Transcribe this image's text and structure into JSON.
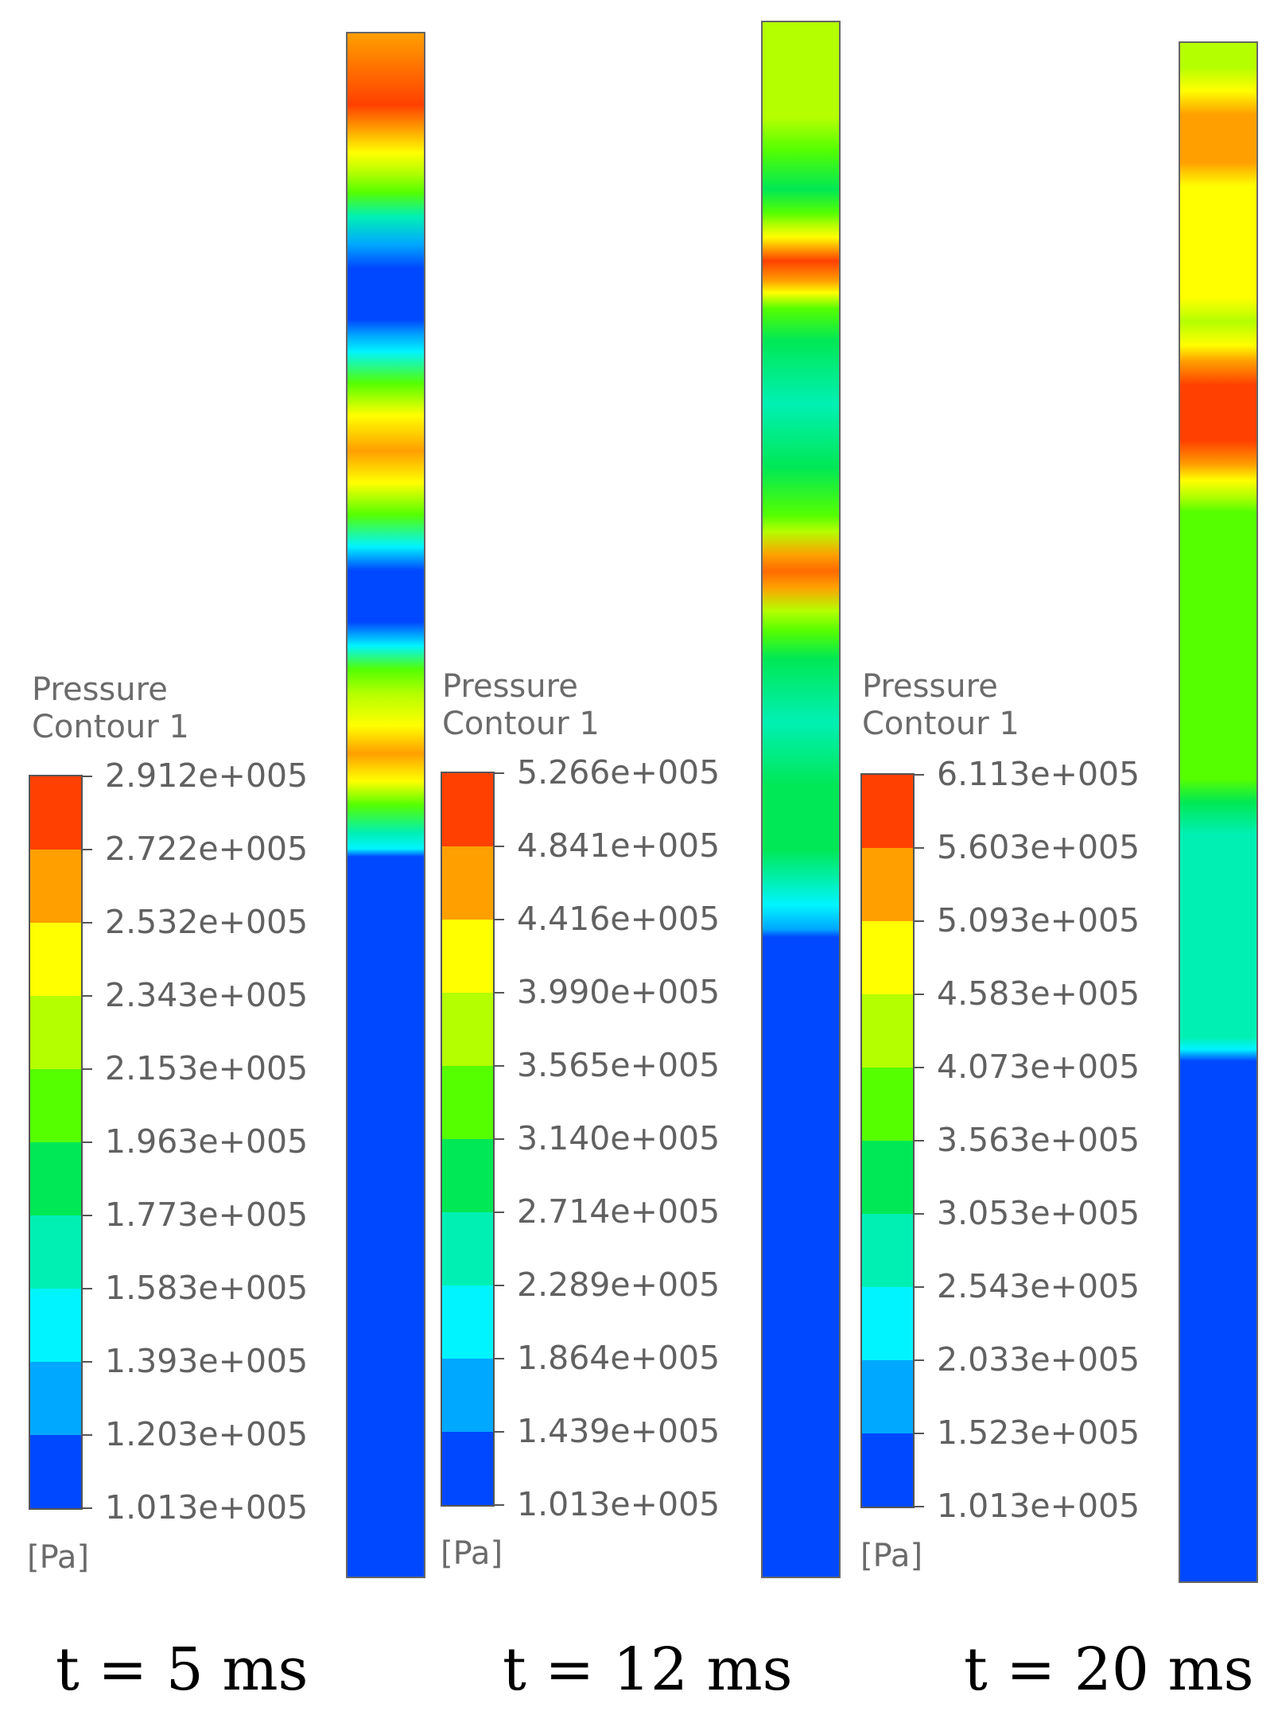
{
  "panels": [
    {
      "legend_title_line1": "Pressure",
      "legend_title_line2": "Contour 1",
      "ticks": [
        "2.912e+005",
        "2.722e+005",
        "2.532e+005",
        "2.343e+005",
        "2.153e+005",
        "1.963e+005",
        "1.773e+005",
        "1.583e+005",
        "1.393e+005",
        "1.203e+005",
        "1.013e+005"
      ],
      "unit": "[Pa]",
      "time": "t = 5 ms"
    },
    {
      "legend_title_line1": "Pressure",
      "legend_title_line2": "Contour 1",
      "ticks": [
        "5.266e+005",
        "4.841e+005",
        "4.416e+005",
        "3.990e+005",
        "3.565e+005",
        "3.140e+005",
        "2.714e+005",
        "2.289e+005",
        "1.864e+005",
        "1.439e+005",
        "1.013e+005"
      ],
      "unit": "[Pa]",
      "time": "t = 12 ms"
    },
    {
      "legend_title_line1": "Pressure",
      "legend_title_line2": "Contour 1",
      "ticks": [
        "6.113e+005",
        "5.603e+005",
        "5.093e+005",
        "4.583e+005",
        "4.073e+005",
        "3.563e+005",
        "3.053e+005",
        "2.543e+005",
        "2.033e+005",
        "1.523e+005",
        "1.013e+005"
      ],
      "unit": "[Pa]",
      "time": "t = 20 ms"
    }
  ],
  "colormap": [
    "#ff4000",
    "#ff9f00",
    "#ffff00",
    "#b4ff00",
    "#55ff00",
    "#00e855",
    "#00f0b4",
    "#00f4ff",
    "#00a8ff",
    "#0048ff"
  ]
}
